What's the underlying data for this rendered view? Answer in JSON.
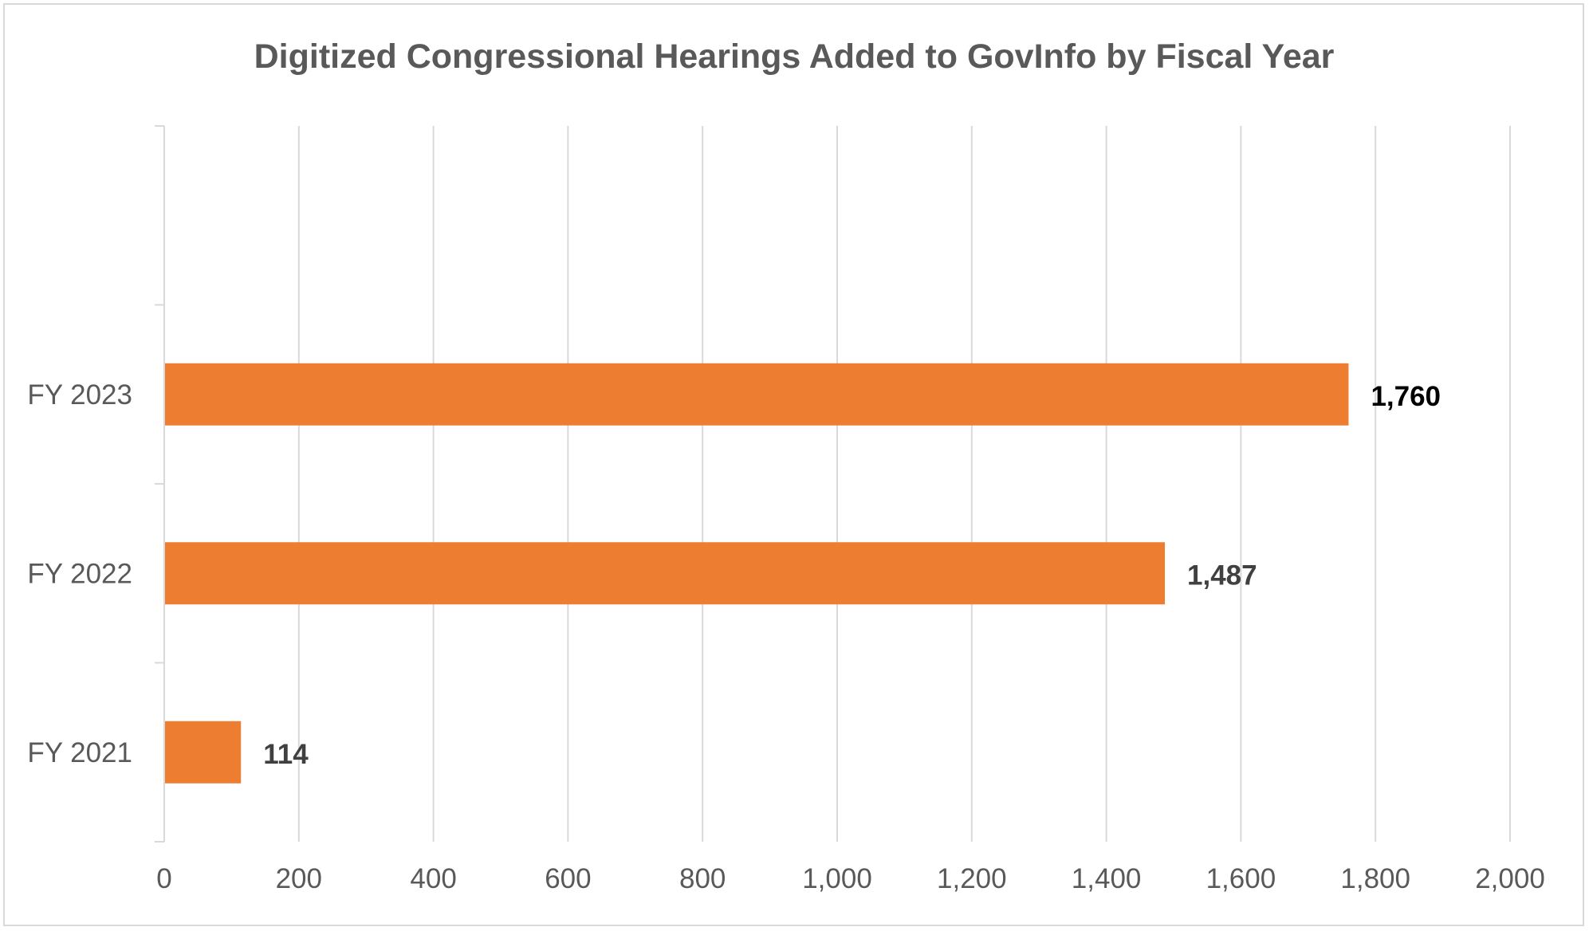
{
  "chart_data": {
    "type": "bar",
    "orientation": "horizontal",
    "title": "Digitized Congressional Hearings Added to GovInfo by Fiscal Year",
    "xlabel": "",
    "ylabel": "",
    "categories": [
      "FY 2021",
      "FY 2022",
      "FY 2023"
    ],
    "values": [
      114,
      1487,
      1760
    ],
    "data_labels": [
      "114",
      "1,487",
      "1,760"
    ],
    "xlim": [
      0,
      2000
    ],
    "x_ticks": [
      0,
      200,
      400,
      600,
      800,
      1000,
      1200,
      1400,
      1600,
      1800,
      2000
    ],
    "x_tick_labels": [
      "0",
      "200",
      "400",
      "600",
      "800",
      "1,000",
      "1,200",
      "1,400",
      "1,600",
      "1,800",
      "2,000"
    ],
    "grid": true,
    "legend": "none",
    "bar_color": "#ED7D31",
    "gridline_color": "#D9D9D9",
    "data_label_colors": [
      "#404040",
      "#404040",
      "#000000"
    ]
  }
}
